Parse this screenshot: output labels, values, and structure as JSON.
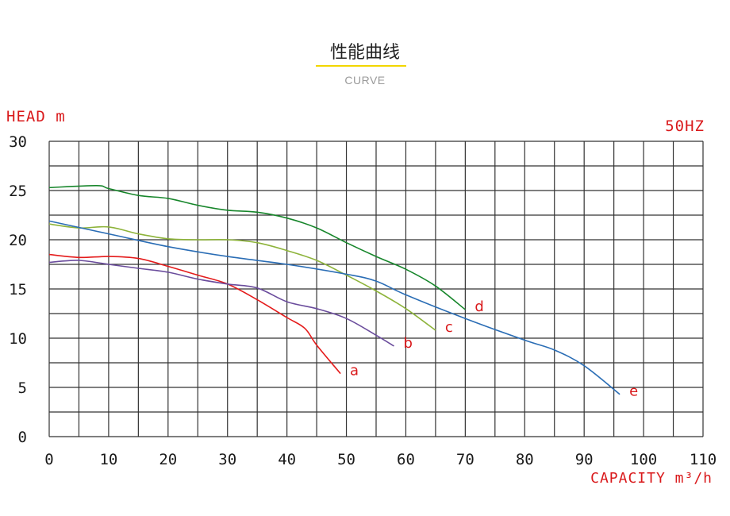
{
  "header": {
    "title": "性能曲线",
    "subtitle": "CURVE"
  },
  "chart_data": {
    "type": "line",
    "ylabel": "HEAD m",
    "xlabel": "CAPACITY m³/h",
    "annotation": "50HZ",
    "xlim": [
      0,
      110
    ],
    "ylim": [
      0,
      30
    ],
    "xticks": [
      0,
      10,
      20,
      30,
      40,
      50,
      60,
      70,
      80,
      90,
      100,
      110
    ],
    "yticks": [
      0,
      5,
      10,
      15,
      20,
      25,
      30
    ],
    "grid": true,
    "series": [
      {
        "name": "a",
        "color": "#e41b1b",
        "points": [
          [
            0,
            18.5
          ],
          [
            5,
            18.2
          ],
          [
            10,
            18.3
          ],
          [
            15,
            18.1
          ],
          [
            20,
            17.3
          ],
          [
            25,
            16.4
          ],
          [
            30,
            15.5
          ],
          [
            35,
            13.9
          ],
          [
            40,
            12.1
          ],
          [
            43,
            11.0
          ],
          [
            45,
            9.3
          ],
          [
            49,
            6.4
          ]
        ]
      },
      {
        "name": "b",
        "color": "#6a4c9c",
        "points": [
          [
            0,
            17.7
          ],
          [
            5,
            17.9
          ],
          [
            10,
            17.5
          ],
          [
            15,
            17.1
          ],
          [
            20,
            16.7
          ],
          [
            25,
            16.0
          ],
          [
            30,
            15.5
          ],
          [
            35,
            15.1
          ],
          [
            40,
            13.7
          ],
          [
            45,
            13.0
          ],
          [
            50,
            12.0
          ],
          [
            55,
            10.3
          ],
          [
            58,
            9.2
          ]
        ]
      },
      {
        "name": "c",
        "color": "#8db33a",
        "points": [
          [
            0,
            21.6
          ],
          [
            5,
            21.2
          ],
          [
            10,
            21.3
          ],
          [
            15,
            20.6
          ],
          [
            20,
            20.1
          ],
          [
            25,
            20.0
          ],
          [
            30,
            20.0
          ],
          [
            35,
            19.7
          ],
          [
            40,
            18.9
          ],
          [
            45,
            17.9
          ],
          [
            50,
            16.4
          ],
          [
            55,
            14.8
          ],
          [
            60,
            13.0
          ],
          [
            65,
            10.8
          ]
        ]
      },
      {
        "name": "d",
        "color": "#17862b",
        "points": [
          [
            0,
            25.3
          ],
          [
            8,
            25.5
          ],
          [
            10,
            25.2
          ],
          [
            15,
            24.5
          ],
          [
            20,
            24.2
          ],
          [
            25,
            23.5
          ],
          [
            30,
            23.0
          ],
          [
            35,
            22.8
          ],
          [
            40,
            22.2
          ],
          [
            45,
            21.2
          ],
          [
            50,
            19.7
          ],
          [
            55,
            18.3
          ],
          [
            60,
            17.0
          ],
          [
            65,
            15.3
          ],
          [
            70,
            12.9
          ]
        ]
      },
      {
        "name": "e",
        "color": "#2a6db5",
        "points": [
          [
            0,
            21.9
          ],
          [
            10,
            20.6
          ],
          [
            20,
            19.3
          ],
          [
            30,
            18.3
          ],
          [
            40,
            17.5
          ],
          [
            50,
            16.5
          ],
          [
            55,
            15.8
          ],
          [
            60,
            14.4
          ],
          [
            70,
            12.0
          ],
          [
            80,
            9.8
          ],
          [
            85,
            8.8
          ],
          [
            90,
            7.2
          ],
          [
            96,
            4.3
          ]
        ]
      }
    ]
  }
}
